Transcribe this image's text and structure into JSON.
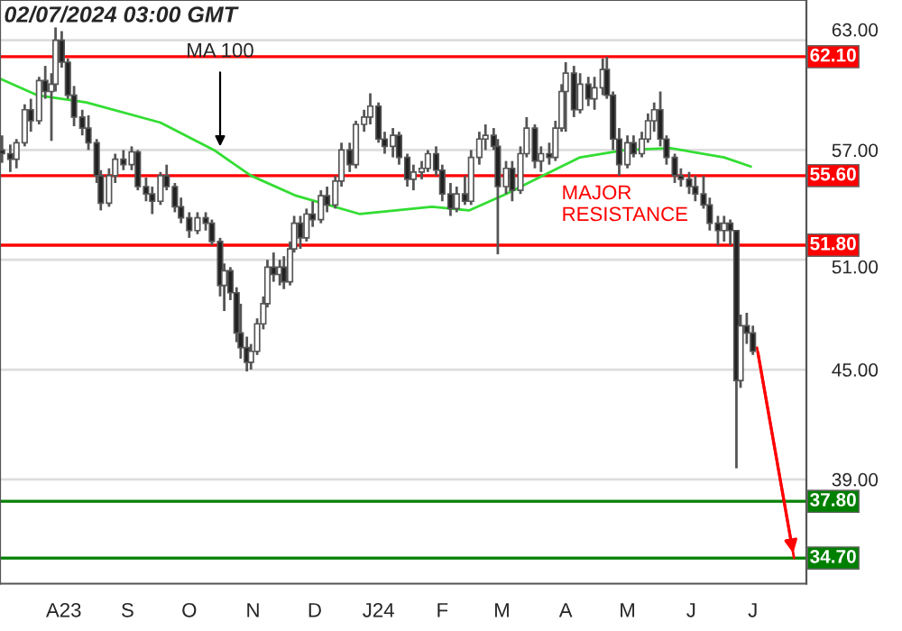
{
  "chart_data": {
    "type": "candlestick",
    "annotations": [
      "02/07/2024 03:00 GMT",
      {
        "text": "MA 100",
        "x": "2023-10-16",
        "y": 57.2
      },
      {
        "text": "MAJOR\nRESISTANCE",
        "x": "2024-03-30",
        "y": 55.6
      }
    ],
    "x": [
      "2023-07-02",
      "2023-07-06",
      "2023-07-09",
      "2023-07-13",
      "2023-07-16",
      "2023-07-20",
      "2023-07-23",
      "2023-07-26",
      "2023-07-28",
      "2023-07-31",
      "2023-08-03",
      "2023-08-06",
      "2023-08-10",
      "2023-08-13",
      "2023-08-17",
      "2023-08-19",
      "2023-08-23",
      "2023-08-26",
      "2023-08-30",
      "2023-09-03",
      "2023-09-06",
      "2023-09-10",
      "2023-09-13",
      "2023-09-17",
      "2023-09-20",
      "2023-09-24",
      "2023-09-27",
      "2023-10-01",
      "2023-10-05",
      "2023-10-09",
      "2023-10-12",
      "2023-10-16",
      "2023-10-18",
      "2023-10-21",
      "2023-10-24",
      "2023-10-26",
      "2023-10-29",
      "2023-10-31",
      "2023-11-03",
      "2023-11-06",
      "2023-11-08",
      "2023-11-11",
      "2023-11-14",
      "2023-11-16",
      "2023-11-19",
      "2023-11-21",
      "2023-11-24",
      "2023-11-27",
      "2023-11-30",
      "2023-12-04",
      "2023-12-07",
      "2023-12-11",
      "2023-12-14",
      "2023-12-18",
      "2023-12-21",
      "2023-12-25",
      "2023-12-28",
      "2024-01-01",
      "2024-01-04",
      "2024-01-08",
      "2024-01-11",
      "2024-01-15",
      "2024-01-18",
      "2024-01-22",
      "2024-01-25",
      "2024-01-29",
      "2024-02-01",
      "2024-02-05",
      "2024-02-08",
      "2024-02-12",
      "2024-02-15",
      "2024-02-19",
      "2024-02-22",
      "2024-02-26",
      "2024-02-28",
      "2024-03-03",
      "2024-03-06",
      "2024-03-10",
      "2024-03-13",
      "2024-03-17",
      "2024-03-20",
      "2024-03-24",
      "2024-03-27",
      "2024-03-30",
      "2024-04-01",
      "2024-04-05",
      "2024-04-08",
      "2024-04-12",
      "2024-04-15",
      "2024-04-19",
      "2024-04-21",
      "2024-04-24",
      "2024-04-27",
      "2024-05-01",
      "2024-05-04",
      "2024-05-08",
      "2024-05-11",
      "2024-05-14",
      "2024-05-17",
      "2024-05-20",
      "2024-05-24",
      "2024-05-27",
      "2024-05-31",
      "2024-06-03",
      "2024-06-07",
      "2024-06-10",
      "2024-06-14",
      "2024-06-17",
      "2024-06-20",
      "2024-06-23",
      "2024-06-25",
      "2024-06-28",
      "2024-07-01"
    ],
    "ohlc": [
      [
        57.0,
        57.8,
        56.3,
        56.8
      ],
      [
        56.8,
        57.3,
        55.8,
        56.5
      ],
      [
        56.5,
        57.6,
        56.0,
        57.4
      ],
      [
        57.4,
        59.5,
        57.2,
        59.2
      ],
      [
        59.2,
        59.8,
        58.0,
        58.6
      ],
      [
        58.6,
        61.0,
        58.4,
        60.8
      ],
      [
        60.8,
        61.6,
        59.8,
        60.2
      ],
      [
        60.2,
        61.2,
        57.5,
        60.6
      ],
      [
        60.6,
        63.7,
        60.2,
        63.0
      ],
      [
        63.0,
        63.5,
        61.5,
        61.8
      ],
      [
        61.8,
        62.0,
        59.8,
        60.0
      ],
      [
        60.0,
        60.5,
        58.3,
        58.8
      ],
      [
        58.8,
        59.2,
        57.8,
        58.2
      ],
      [
        58.2,
        58.9,
        57.0,
        57.4
      ],
      [
        57.4,
        57.6,
        55.2,
        55.6
      ],
      [
        55.6,
        55.9,
        53.7,
        54.1
      ],
      [
        54.1,
        56.0,
        53.9,
        55.6
      ],
      [
        55.6,
        56.8,
        55.2,
        56.5
      ],
      [
        56.5,
        57.0,
        55.9,
        56.2
      ],
      [
        56.2,
        57.2,
        55.9,
        56.9
      ],
      [
        56.9,
        57.0,
        54.8,
        55.0
      ],
      [
        55.0,
        55.5,
        54.2,
        54.6
      ],
      [
        54.6,
        55.0,
        53.5,
        54.2
      ],
      [
        54.2,
        55.8,
        54.0,
        55.6
      ],
      [
        55.6,
        56.2,
        54.8,
        55.0
      ],
      [
        55.0,
        55.2,
        53.6,
        53.9
      ],
      [
        53.9,
        54.4,
        53.0,
        53.3
      ],
      [
        53.3,
        53.6,
        52.2,
        52.6
      ],
      [
        52.6,
        53.6,
        52.4,
        53.3
      ],
      [
        53.3,
        53.6,
        52.6,
        53.0
      ],
      [
        53.0,
        53.2,
        51.8,
        52.0
      ],
      [
        52.0,
        52.2,
        49.0,
        49.6
      ],
      [
        49.6,
        50.8,
        48.2,
        50.4
      ],
      [
        50.4,
        50.6,
        48.8,
        49.2
      ],
      [
        49.2,
        49.5,
        46.5,
        47.0
      ],
      [
        47.0,
        48.6,
        45.6,
        46.2
      ],
      [
        46.2,
        46.8,
        44.9,
        45.4
      ],
      [
        45.4,
        46.4,
        45.0,
        46.0
      ],
      [
        46.0,
        47.8,
        45.8,
        47.5
      ],
      [
        47.5,
        49.0,
        47.2,
        48.6
      ],
      [
        48.6,
        51.0,
        48.4,
        50.6
      ],
      [
        50.6,
        51.4,
        49.8,
        50.2
      ],
      [
        50.2,
        51.0,
        49.6,
        50.6
      ],
      [
        50.6,
        51.2,
        49.4,
        49.8
      ],
      [
        49.8,
        52.0,
        49.6,
        51.6
      ],
      [
        51.6,
        53.4,
        51.4,
        53.0
      ],
      [
        53.0,
        53.4,
        51.6,
        52.2
      ],
      [
        52.2,
        53.8,
        52.0,
        53.5
      ],
      [
        53.5,
        54.2,
        52.8,
        53.2
      ],
      [
        53.2,
        54.8,
        53.0,
        54.5
      ],
      [
        54.5,
        55.0,
        53.6,
        54.0
      ],
      [
        54.0,
        55.6,
        53.8,
        55.3
      ],
      [
        55.3,
        57.4,
        55.0,
        57.0
      ],
      [
        57.0,
        57.4,
        55.8,
        56.2
      ],
      [
        56.2,
        58.6,
        56.0,
        58.4
      ],
      [
        58.4,
        59.2,
        58.0,
        58.8
      ],
      [
        58.8,
        60.1,
        58.4,
        59.4
      ],
      [
        59.4,
        59.6,
        57.4,
        57.6
      ],
      [
        57.6,
        58.0,
        56.8,
        57.2
      ],
      [
        57.2,
        58.2,
        56.6,
        57.8
      ],
      [
        57.8,
        58.0,
        56.2,
        56.6
      ],
      [
        56.6,
        56.8,
        55.0,
        55.4
      ],
      [
        55.4,
        56.2,
        54.8,
        55.8
      ],
      [
        55.8,
        56.4,
        55.4,
        56.0
      ],
      [
        56.0,
        57.0,
        55.8,
        56.8
      ],
      [
        56.8,
        57.2,
        55.6,
        55.9
      ],
      [
        55.9,
        56.2,
        54.2,
        54.6
      ],
      [
        54.6,
        55.2,
        53.4,
        53.8
      ],
      [
        53.8,
        55.0,
        53.6,
        54.6
      ],
      [
        54.6,
        55.6,
        54.0,
        54.2
      ],
      [
        54.2,
        57.0,
        54.0,
        56.6
      ],
      [
        56.6,
        58.0,
        56.2,
        57.6
      ],
      [
        57.6,
        58.4,
        57.0,
        57.8
      ],
      [
        57.8,
        58.2,
        57.0,
        57.2
      ],
      [
        57.2,
        57.6,
        51.3,
        55.0
      ],
      [
        55.0,
        56.4,
        54.6,
        56.0
      ],
      [
        56.0,
        56.4,
        54.2,
        54.8
      ],
      [
        54.8,
        57.2,
        54.6,
        56.8
      ],
      [
        56.8,
        58.8,
        56.6,
        58.2
      ],
      [
        58.2,
        58.4,
        56.0,
        56.4
      ],
      [
        56.4,
        57.2,
        55.8,
        56.8
      ],
      [
        56.8,
        57.4,
        56.2,
        56.6
      ],
      [
        56.6,
        58.6,
        56.4,
        58.2
      ],
      [
        58.2,
        60.6,
        58.0,
        60.2
      ],
      [
        60.2,
        61.8,
        58.0,
        61.2
      ],
      [
        61.2,
        61.6,
        58.8,
        59.2
      ],
      [
        59.2,
        61.2,
        59.0,
        60.6
      ],
      [
        60.6,
        61.0,
        59.4,
        59.8
      ],
      [
        59.8,
        61.0,
        59.2,
        60.4
      ],
      [
        60.4,
        62.0,
        60.0,
        61.4
      ],
      [
        61.4,
        62.1,
        59.8,
        60.0
      ],
      [
        60.0,
        60.2,
        57.0,
        57.6
      ],
      [
        57.6,
        58.2,
        55.6,
        56.2
      ],
      [
        56.2,
        57.8,
        56.0,
        57.4
      ],
      [
        57.4,
        57.8,
        56.6,
        56.8
      ],
      [
        56.8,
        58.0,
        56.6,
        57.6
      ],
      [
        57.6,
        59.0,
        57.4,
        58.6
      ],
      [
        58.6,
        59.6,
        58.0,
        59.2
      ],
      [
        59.2,
        60.2,
        57.2,
        57.6
      ],
      [
        57.6,
        57.8,
        56.2,
        56.6
      ],
      [
        56.6,
        56.8,
        55.2,
        55.6
      ],
      [
        55.6,
        56.0,
        55.0,
        55.4
      ],
      [
        55.4,
        55.8,
        54.6,
        55.0
      ],
      [
        55.0,
        55.6,
        54.2,
        54.6
      ],
      [
        54.6,
        55.6,
        53.8,
        54.0
      ],
      [
        54.0,
        54.4,
        52.6,
        53.0
      ],
      [
        53.0,
        53.4,
        51.8,
        52.6
      ],
      [
        52.6,
        53.4,
        52.0,
        53.0
      ],
      [
        53.0,
        53.2,
        51.8,
        52.6
      ],
      [
        52.6,
        52.6,
        39.6,
        44.4
      ],
      [
        44.4,
        48.0,
        44.0,
        47.4
      ],
      [
        47.4,
        48.1,
        46.4,
        47.0
      ],
      [
        47.0,
        47.4,
        45.8,
        46.0
      ]
    ],
    "color": "#555555",
    "series": [
      {
        "type": "line",
        "color": "#33dd33",
        "x": [
          "2023-07-01",
          "2023-07-19",
          "2023-08-12",
          "2023-09-17",
          "2023-10-13",
          "2023-10-31",
          "2023-11-22",
          "2023-12-23",
          "2024-01-27",
          "2024-02-14",
          "2024-03-03",
          "2024-03-21",
          "2024-04-08",
          "2024-04-30",
          "2024-05-22",
          "2024-06-17",
          "2024-06-30"
        ],
        "values": [
          60.9,
          60.0,
          59.6,
          58.5,
          57.0,
          55.6,
          54.5,
          53.5,
          53.9,
          53.7,
          54.6,
          55.6,
          56.6,
          57.0,
          57.1,
          56.6,
          56.1
        ]
      },
      {
        "type": "line",
        "color": "#ff0000",
        "x": [
          "2024-07-03",
          "2024-07-21"
        ],
        "values": [
          46.2,
          34.7
        ]
      }
    ],
    "ref_lines": [
      {
        "axis": "y",
        "value": 62.1,
        "label": "62.10",
        "color": "#ff0000"
      },
      {
        "axis": "y",
        "value": 55.6,
        "label": "55.60",
        "color": "#ff0000"
      },
      {
        "axis": "y",
        "value": 51.8,
        "label": "51.80",
        "color": "#ff0000"
      },
      {
        "axis": "y",
        "value": 37.8,
        "label": "37.80",
        "color": "#008000"
      },
      {
        "axis": "y",
        "value": 34.7,
        "label": "34.70",
        "color": "#008000"
      }
    ],
    "xlim": [
      "2023-07-01",
      "2024-07-27"
    ],
    "xticks": [
      {
        "value": "2023-08-01",
        "label": "A23"
      },
      {
        "value": "2023-09-01",
        "label": "S"
      },
      {
        "value": "2023-10-01",
        "label": "O"
      },
      {
        "value": "2023-11-01",
        "label": "N"
      },
      {
        "value": "2023-12-01",
        "label": "D"
      },
      {
        "value": "2024-01-01",
        "label": "J24"
      },
      {
        "value": "2024-02-01",
        "label": "F"
      },
      {
        "value": "2024-03-01",
        "label": "M"
      },
      {
        "value": "2024-04-01",
        "label": "A"
      },
      {
        "value": "2024-05-01",
        "label": "M"
      },
      {
        "value": "2024-06-01",
        "label": "J"
      },
      {
        "value": "2024-07-01",
        "label": "J"
      }
    ],
    "ylim": [
      33.3,
      65.2
    ],
    "yticks": [
      {
        "value": 39,
        "label": "39.00"
      },
      {
        "value": 45,
        "label": "45.00"
      },
      {
        "value": 51,
        "label": "51.00"
      },
      {
        "value": 57,
        "label": "57.00"
      },
      {
        "value": 63,
        "label": "63.00"
      }
    ],
    "grid": "y"
  }
}
